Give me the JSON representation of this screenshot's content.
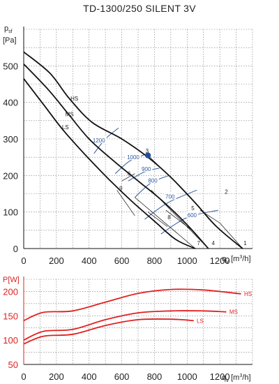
{
  "title": "TD-1300/250 SILENT 3V",
  "colors": {
    "grid": "#777777",
    "curve": "#111111",
    "iso": "#2f5b9e",
    "power": "#e02020",
    "point": "#1f4fa0"
  },
  "chart_data": [
    {
      "type": "line",
      "ylabel_top": "p",
      "ylabel_sub": "sf",
      "ylabel_unit": "[Pa]",
      "xlabel_q": "q",
      "xlabel_sub": "v",
      "xlabel_unit": "[m",
      "xlabel_sup": "3",
      "xlabel_unit_end": "/h]",
      "xlim": [
        0,
        1400
      ],
      "ylim": [
        0,
        600
      ],
      "x_ticks": [
        0,
        200,
        400,
        600,
        800,
        1000,
        1200
      ],
      "y_ticks": [
        0,
        100,
        200,
        300,
        400,
        500
      ],
      "grid": true,
      "series": [
        {
          "name": "HS",
          "x": [
            0,
            160,
            280,
            420,
            600,
            760,
            900,
            1050,
            1180,
            1340
          ],
          "y": [
            538,
            480,
            410,
            345,
            300,
            250,
            195,
            125,
            60,
            0
          ]
        },
        {
          "name": "MS",
          "x": [
            0,
            150,
            270,
            400,
            550,
            700,
            850,
            1000,
            1130
          ],
          "y": [
            505,
            435,
            370,
            300,
            240,
            185,
            130,
            65,
            0
          ]
        },
        {
          "name": "LS",
          "x": [
            0,
            120,
            240,
            380,
            520,
            660,
            800,
            930,
            1050
          ],
          "y": [
            465,
            395,
            325,
            255,
            190,
            130,
            75,
            25,
            0
          ]
        }
      ],
      "curve_labels": [
        {
          "text": "HS",
          "x": 310,
          "y": 405
        },
        {
          "text": "MS",
          "x": 280,
          "y": 362
        },
        {
          "text": "LS",
          "x": 255,
          "y": 327
        }
      ],
      "system_lines": [
        {
          "label": "1",
          "x": [
            1200,
            1340
          ],
          "y": [
            70,
            0
          ]
        },
        {
          "label": "2",
          "x": [
            1080,
            1200
          ],
          "y": [
            105,
            70
          ]
        },
        {
          "label": "3",
          "x": [
            760,
            900
          ],
          "y": [
            255,
            195
          ]
        },
        {
          "label": "4",
          "x": [
            780,
            1130
          ],
          "y": [
            160,
            0
          ]
        },
        {
          "label": "5",
          "x": [
            870,
            1030
          ],
          "y": [
            105,
            50
          ]
        },
        {
          "label": "6",
          "x": [
            600,
            680
          ],
          "y": [
            185,
            205
          ]
        },
        {
          "label": "7",
          "x": [
            680,
            1050
          ],
          "y": [
            140,
            0
          ]
        },
        {
          "label": "8",
          "x": [
            760,
            880
          ],
          "y": [
            100,
            60
          ]
        },
        {
          "label": "9",
          "x": [
            570,
            680
          ],
          "y": [
            160,
            90
          ]
        }
      ],
      "system_numbers": [
        {
          "text": "1",
          "x": 1355,
          "y": 10
        },
        {
          "text": "2",
          "x": 1240,
          "y": 150
        },
        {
          "text": "3",
          "x": 755,
          "y": 262
        },
        {
          "text": "4",
          "x": 1160,
          "y": 10
        },
        {
          "text": "5",
          "x": 1035,
          "y": 105
        },
        {
          "text": "6",
          "x": 645,
          "y": 200
        },
        {
          "text": "7",
          "x": 1070,
          "y": 10
        },
        {
          "text": "8",
          "x": 890,
          "y": 80
        },
        {
          "text": "9",
          "x": 595,
          "y": 160
        }
      ],
      "isolines": [
        {
          "label": "1200",
          "x": [
            430,
            500,
            580
          ],
          "y": [
            260,
            300,
            330
          ]
        },
        {
          "label": "1000",
          "x": [
            560,
            650,
            760
          ],
          "y": [
            205,
            240,
            260
          ]
        },
        {
          "label": "900",
          "x": [
            640,
            740,
            830
          ],
          "y": [
            185,
            210,
            220
          ]
        },
        {
          "label": "800",
          "x": [
            680,
            780,
            890
          ],
          "y": [
            140,
            180,
            200
          ]
        },
        {
          "label": "700",
          "x": [
            740,
            880,
            1060
          ],
          "y": [
            80,
            125,
            160
          ]
        },
        {
          "label": "600",
          "x": [
            840,
            1000,
            1190
          ],
          "y": [
            40,
            85,
            105
          ]
        }
      ],
      "iso_labels": [
        {
          "text": "1200",
          "x": 460,
          "y": 296
        },
        {
          "text": "1000",
          "x": 670,
          "y": 250
        },
        {
          "text": "900",
          "x": 750,
          "y": 218
        },
        {
          "text": "800",
          "x": 790,
          "y": 186
        },
        {
          "text": "700",
          "x": 895,
          "y": 142
        },
        {
          "text": "600",
          "x": 1030,
          "y": 92
        }
      ],
      "operating_point": {
        "x": 760,
        "y": 255
      }
    },
    {
      "type": "line",
      "ylabel": "P[W]",
      "xlabel_q": "q",
      "xlabel_sub": "v",
      "xlabel_unit": "[m",
      "xlabel_sup": "3",
      "xlabel_unit_end": "/h]",
      "xlim": [
        0,
        1400
      ],
      "ylim": [
        50,
        225
      ],
      "x_ticks": [
        0,
        200,
        400,
        600,
        800,
        1000,
        1200
      ],
      "y_ticks": [
        50,
        100,
        150,
        200
      ],
      "grid": true,
      "series": [
        {
          "name": "HS",
          "x": [
            0,
            120,
            300,
            500,
            700,
            900,
            1100,
            1330
          ],
          "y": [
            140,
            157,
            160,
            178,
            196,
            204,
            203,
            195
          ]
        },
        {
          "name": "MS",
          "x": [
            0,
            120,
            300,
            500,
            700,
            900,
            1100,
            1240
          ],
          "y": [
            100,
            118,
            122,
            142,
            156,
            160,
            160,
            158
          ]
        },
        {
          "name": "LS",
          "x": [
            0,
            120,
            300,
            500,
            700,
            900,
            1040
          ],
          "y": [
            92,
            108,
            112,
            130,
            142,
            143,
            140
          ]
        }
      ],
      "series_labels": [
        {
          "text": "HS",
          "x": 1340,
          "y": 195
        },
        {
          "text": "MS",
          "x": 1250,
          "y": 158
        },
        {
          "text": "LS",
          "x": 1050,
          "y": 140
        }
      ]
    }
  ]
}
